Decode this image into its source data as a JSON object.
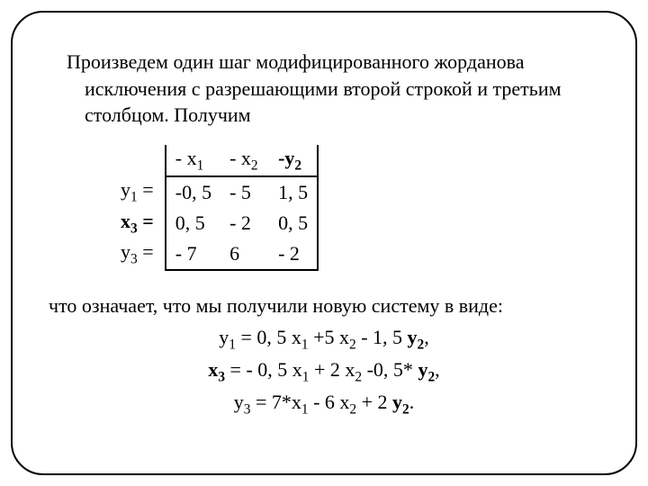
{
  "intro": "Произведем один шаг модифицированного жорданова исключения с разрешающими второй строкой и третьим столбцом. Получим",
  "table": {
    "header": {
      "c1": "- x",
      "c1s": "1",
      "c2": "- x",
      "c2s": "2",
      "c3": "-y",
      "c3s": "2"
    },
    "rows": [
      {
        "label": "y",
        "ls": "1",
        "after": " =",
        "v1": "-0, 5",
        "v2": "- 5",
        "v3": "1, 5",
        "bold": false
      },
      {
        "label": "x",
        "ls": "3",
        "after": " =",
        "v1": "0, 5",
        "v2": "- 2",
        "v3": "0, 5",
        "bold": true
      },
      {
        "label": "y",
        "ls": "3",
        "after": " =",
        "v1": "- 7",
        "v2": "6",
        "v3": "- 2",
        "bold": false
      }
    ]
  },
  "conclusion": "что означает, что мы получили новую систему в виде:",
  "eq1": {
    "pre": "y",
    "s1": "1",
    "mid1": " = 0, 5 x",
    "s2": "1",
    "mid2": " +5 x",
    "s3": "2",
    "mid3": " - 1, 5 ",
    "yb": "y",
    "ys": "2",
    "tail": ","
  },
  "eq2": {
    "pre": "x",
    "s1": "3",
    "mid1": " = - 0, 5 x",
    "s2": "1",
    "mid2": " + 2 x",
    "s3": "2",
    "mid3": " -0, 5* ",
    "yb": "y",
    "ys": "2",
    "tail": ","
  },
  "eq3": {
    "pre": "y",
    "s1": "3",
    "mid1": " = 7*x",
    "s2": "1",
    "mid2": " - 6 x",
    "s3": "2",
    "mid3": " + 2 ",
    "yb": "y",
    "ys": "2",
    "tail": "."
  }
}
